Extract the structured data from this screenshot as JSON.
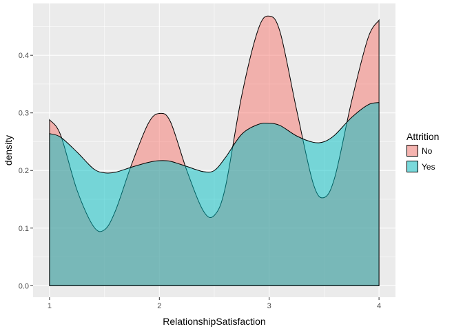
{
  "chart_data": {
    "type": "area",
    "chart_subtype": "density",
    "xlabel": "RelationshipSatisfaction",
    "ylabel": "density",
    "xlim": [
      0.85,
      4.15
    ],
    "ylim": [
      -0.02,
      0.49
    ],
    "x_ticks": [
      1,
      2,
      3,
      4
    ],
    "y_ticks": [
      0.0,
      0.1,
      0.2,
      0.3,
      0.4
    ],
    "y_tick_labels": [
      "0.0",
      "0.1",
      "0.2",
      "0.3",
      "0.4"
    ],
    "grid": true,
    "legend": {
      "title": "Attrition",
      "position": "right"
    },
    "series": [
      {
        "name": "No",
        "color": "#f8766d",
        "x": [
          1.0,
          1.1,
          1.25,
          1.4,
          1.5,
          1.6,
          1.75,
          1.9,
          2.0,
          2.1,
          2.25,
          2.4,
          2.5,
          2.6,
          2.75,
          2.9,
          3.0,
          3.1,
          3.25,
          3.4,
          3.5,
          3.6,
          3.75,
          3.9,
          4.0
        ],
        "values": [
          0.288,
          0.262,
          0.166,
          0.103,
          0.097,
          0.13,
          0.212,
          0.282,
          0.299,
          0.285,
          0.2,
          0.13,
          0.122,
          0.17,
          0.33,
          0.445,
          0.468,
          0.44,
          0.305,
          0.178,
          0.153,
          0.19,
          0.32,
          0.43,
          0.461
        ]
      },
      {
        "name": "Yes",
        "color": "#00bfc4",
        "x": [
          1.0,
          1.1,
          1.25,
          1.4,
          1.5,
          1.6,
          1.75,
          1.9,
          2.0,
          2.1,
          2.25,
          2.4,
          2.5,
          2.6,
          2.75,
          2.9,
          3.0,
          3.1,
          3.25,
          3.4,
          3.5,
          3.6,
          3.75,
          3.9,
          4.0
        ],
        "values": [
          0.264,
          0.258,
          0.232,
          0.203,
          0.196,
          0.197,
          0.206,
          0.214,
          0.217,
          0.216,
          0.207,
          0.198,
          0.2,
          0.222,
          0.263,
          0.28,
          0.282,
          0.278,
          0.26,
          0.249,
          0.25,
          0.262,
          0.292,
          0.314,
          0.318
        ]
      }
    ]
  }
}
